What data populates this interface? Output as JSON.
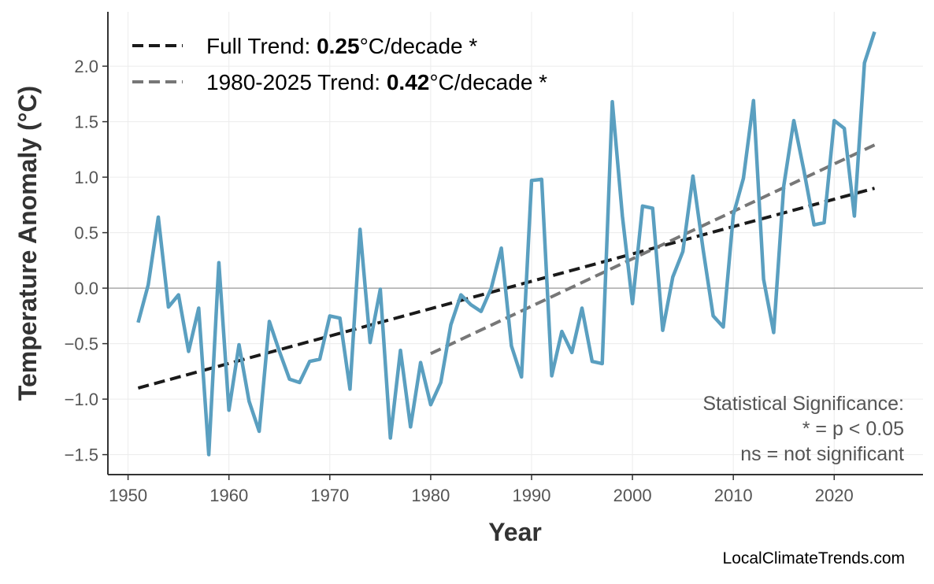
{
  "chart_data": {
    "type": "line",
    "xlabel": "Year",
    "ylabel": "Temperature Anomaly (°C)",
    "xlim": [
      1948,
      2028.8
    ],
    "ylim": [
      -1.68,
      2.49
    ],
    "xticks": [
      1950,
      1960,
      1970,
      1980,
      1990,
      2000,
      2010,
      2020
    ],
    "yticks": [
      -1.5,
      -1.0,
      -0.5,
      0.0,
      0.5,
      1.0,
      1.5,
      2.0
    ],
    "ytick_labels": [
      "−1.5",
      "−1.0",
      "−0.5",
      "0.0",
      "0.5",
      "1.0",
      "1.5",
      "2.0"
    ],
    "grid": true,
    "legend_position": "top-left",
    "x": [
      1951,
      1952,
      1953,
      1954,
      1955,
      1956,
      1957,
      1958,
      1959,
      1960,
      1961,
      1962,
      1963,
      1964,
      1965,
      1966,
      1967,
      1968,
      1969,
      1970,
      1971,
      1972,
      1973,
      1974,
      1975,
      1976,
      1977,
      1978,
      1979,
      1980,
      1981,
      1982,
      1983,
      1984,
      1985,
      1986,
      1987,
      1988,
      1989,
      1990,
      1991,
      1992,
      1993,
      1994,
      1995,
      1996,
      1997,
      1998,
      1999,
      2000,
      2001,
      2002,
      2003,
      2004,
      2005,
      2006,
      2007,
      2008,
      2009,
      2010,
      2011,
      2012,
      2013,
      2014,
      2015,
      2016,
      2017,
      2018,
      2019,
      2020,
      2021,
      2022,
      2023,
      2024
    ],
    "series": [
      {
        "color": "#5a9fc0",
        "values": [
          -0.31,
          0.03,
          0.64,
          -0.17,
          -0.06,
          -0.57,
          -0.18,
          -1.5,
          0.23,
          -1.1,
          -0.51,
          -1.02,
          -1.29,
          -0.3,
          -0.57,
          -0.82,
          -0.85,
          -0.66,
          -0.64,
          -0.25,
          -0.27,
          -0.91,
          0.53,
          -0.49,
          -0.01,
          -1.35,
          -0.56,
          -1.25,
          -0.67,
          -1.05,
          -0.85,
          -0.33,
          -0.06,
          -0.15,
          -0.21,
          0.0,
          0.36,
          -0.52,
          -0.8,
          0.97,
          0.98,
          -0.79,
          -0.39,
          -0.58,
          -0.18,
          -0.66,
          -0.68,
          1.68,
          0.65,
          -0.14,
          0.74,
          0.72,
          -0.38,
          0.1,
          0.33,
          1.01,
          0.35,
          -0.25,
          -0.35,
          0.66,
          0.99,
          1.69,
          0.08,
          -0.4,
          0.92,
          1.51,
          1.06,
          0.57,
          0.59,
          1.51,
          1.44,
          0.65,
          2.03,
          2.31
        ]
      }
    ],
    "trends": [
      {
        "label": "Full Trend: ",
        "value": "0.25",
        "unit": "°C/decade *",
        "color": "#1a1a1a",
        "x": [
          1951,
          2024
        ],
        "y": [
          -0.9,
          0.9
        ]
      },
      {
        "label": "1980-2025 Trend: ",
        "value": "0.42",
        "unit": "°C/decade *",
        "color": "#777777",
        "x": [
          1980,
          2024
        ],
        "y": [
          -0.59,
          1.29
        ]
      }
    ],
    "annotation": [
      "Statistical Significance:",
      "* = p < 0.05",
      "ns = not significant"
    ],
    "watermark": "LocalClimateTrends.com"
  }
}
